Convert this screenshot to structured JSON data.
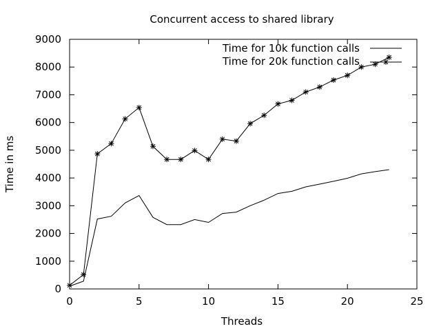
{
  "chart_data": {
    "type": "line",
    "title": "Concurrent access to shared library",
    "xlabel": "Threads",
    "ylabel": "Time in ms",
    "xlim": [
      0,
      25
    ],
    "ylim": [
      0,
      9000
    ],
    "x_ticks": [
      0,
      5,
      10,
      15,
      20,
      25
    ],
    "y_ticks": [
      0,
      1000,
      2000,
      3000,
      4000,
      5000,
      6000,
      7000,
      8000,
      9000
    ],
    "grid": false,
    "legend_position": "top-right",
    "series": [
      {
        "name": "Time for 10k function calls",
        "marker": "none",
        "x": [
          0,
          1,
          2,
          3,
          4,
          5,
          6,
          7,
          8,
          9,
          10,
          11,
          12,
          13,
          14,
          15,
          16,
          17,
          18,
          19,
          20,
          21,
          22,
          23
        ],
        "values": [
          100,
          280,
          2520,
          2620,
          3100,
          3370,
          2580,
          2320,
          2320,
          2500,
          2400,
          2720,
          2770,
          3000,
          3200,
          3440,
          3520,
          3680,
          3780,
          3880,
          3990,
          4150,
          4230,
          4300
        ]
      },
      {
        "name": "Time for 20k function calls",
        "marker": "star",
        "x": [
          0,
          1,
          2,
          3,
          4,
          5,
          6,
          7,
          8,
          9,
          10,
          11,
          12,
          13,
          14,
          15,
          16,
          17,
          18,
          19,
          20,
          21,
          22,
          23
        ],
        "values": [
          130,
          520,
          4870,
          5240,
          6130,
          6540,
          5140,
          4670,
          4670,
          4990,
          4670,
          5400,
          5330,
          5960,
          6260,
          6670,
          6800,
          7100,
          7280,
          7530,
          7700,
          8000,
          8100,
          8350
        ]
      }
    ]
  }
}
